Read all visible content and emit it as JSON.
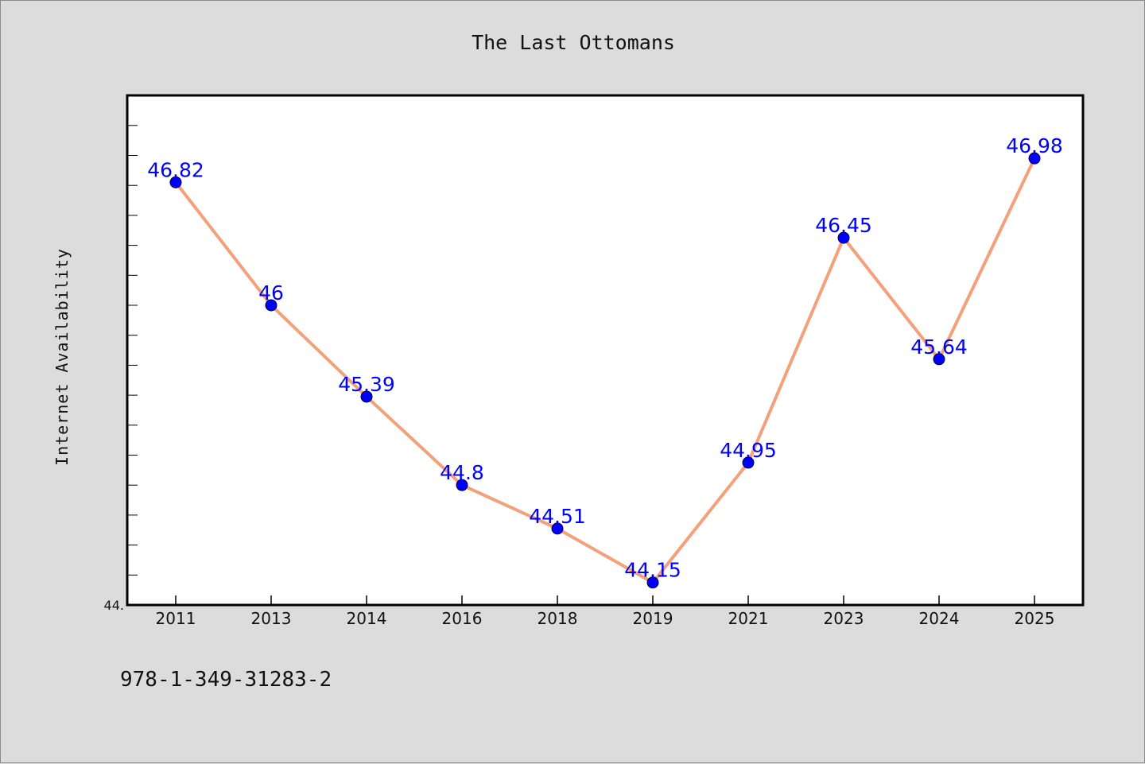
{
  "chart_data": {
    "type": "line",
    "title": "The Last Ottomans",
    "xlabel": "",
    "ylabel": "Internet Availability",
    "categories": [
      "2011",
      "2013",
      "2014",
      "2016",
      "2018",
      "2019",
      "2021",
      "2023",
      "2024",
      "2025"
    ],
    "series": [
      {
        "values": [
          46.82,
          46,
          45.39,
          44.8,
          44.51,
          44.15,
          44.95,
          46.45,
          45.64,
          46.98
        ]
      }
    ],
    "ylim": [
      44.0,
      47.4
    ],
    "y_tick_label_shown": "44.",
    "grid": false,
    "colors": {
      "line": "#f4a07a",
      "marker": "#0000ff",
      "data_label": "#0000ff",
      "background": "#dcdcdc",
      "plot_background": "#ffffff"
    }
  },
  "footer_text": "978-1-349-31283-2"
}
